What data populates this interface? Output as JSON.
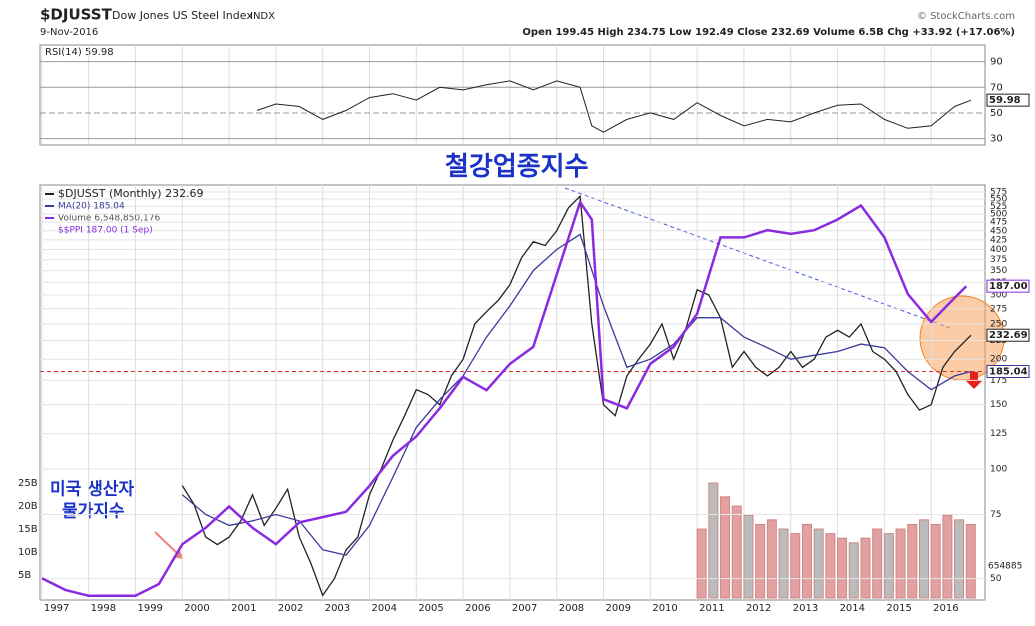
{
  "header": {
    "symbol": "$DJUSST",
    "name": "Dow Jones US Steel Index",
    "market": "INDX",
    "date": "9-Nov-2016",
    "quote": "Open 199.45 High 234.75 Low 192.49 Close 232.69 Volume 6.5B Chg +33.92 (+17.06%)",
    "source": "© StockCharts.com"
  },
  "annotations": {
    "steel": "철강업종지수",
    "ppi_1": "미국 생산자",
    "ppi_2": "물가지수",
    "cut_label": "654885"
  },
  "chart_data": [
    {
      "type": "line",
      "title": "RSI(14) 59.98",
      "color": "#222",
      "ylim": [
        25,
        103
      ],
      "yticks": [
        30,
        50,
        70,
        90
      ],
      "last_label": "59.98",
      "x": [
        2001.6,
        2002,
        2002.5,
        2003,
        2003.5,
        2004,
        2004.5,
        2005,
        2005.5,
        2006,
        2006.5,
        2007,
        2007.5,
        2008,
        2008.5,
        2008.75,
        2009,
        2009.5,
        2010,
        2010.5,
        2011,
        2011.5,
        2012,
        2012.5,
        2013,
        2013.5,
        2014,
        2014.5,
        2015,
        2015.5,
        2016,
        2016.5,
        2016.85
      ],
      "values": [
        52,
        57,
        55,
        45,
        52,
        62,
        65,
        60,
        70,
        68,
        72,
        75,
        68,
        75,
        70,
        40,
        35,
        45,
        50,
        45,
        58,
        48,
        40,
        45,
        43,
        50,
        56,
        57,
        45,
        38,
        40,
        55,
        59.98
      ]
    },
    {
      "type": "line",
      "log": true,
      "xlim": [
        1996.96,
        2017.15
      ],
      "xticks": [
        1997,
        1998,
        1999,
        2000,
        2001,
        2002,
        2003,
        2004,
        2005,
        2006,
        2007,
        2008,
        2009,
        2010,
        2011,
        2012,
        2013,
        2014,
        2015,
        2016
      ],
      "ylim": [
        43.7,
        601
      ],
      "yticks": [
        50,
        75,
        100,
        125,
        150,
        175,
        200,
        225,
        250,
        275,
        300,
        325,
        350,
        375,
        400,
        425,
        450,
        475,
        500,
        525,
        550,
        575
      ],
      "y2lim": [
        121.3,
        215
      ],
      "grid": true,
      "series": [
        {
          "name": "$DJUSST (Monthly) 232.69",
          "color": "#222",
          "x": [
            2000,
            2000.25,
            2000.5,
            2000.75,
            2001,
            2001.25,
            2001.5,
            2001.75,
            2002,
            2002.25,
            2002.5,
            2002.75,
            2003,
            2003.25,
            2003.5,
            2003.75,
            2004,
            2004.25,
            2004.5,
            2004.75,
            2005,
            2005.25,
            2005.5,
            2005.75,
            2006,
            2006.25,
            2006.5,
            2006.75,
            2007,
            2007.25,
            2007.5,
            2007.75,
            2008,
            2008.25,
            2008.5,
            2008.75,
            2009,
            2009.25,
            2009.5,
            2009.75,
            2010,
            2010.25,
            2010.5,
            2010.75,
            2011,
            2011.25,
            2011.5,
            2011.75,
            2012,
            2012.25,
            2012.5,
            2012.75,
            2013,
            2013.25,
            2013.5,
            2013.75,
            2014,
            2014.25,
            2014.5,
            2014.75,
            2015,
            2015.25,
            2015.5,
            2015.75,
            2016,
            2016.25,
            2016.5,
            2016.85
          ],
          "values": [
            90,
            80,
            65,
            62,
            65,
            72,
            85,
            70,
            78,
            88,
            65,
            55,
            45,
            50,
            60,
            65,
            85,
            100,
            120,
            140,
            165,
            160,
            150,
            180,
            200,
            250,
            270,
            290,
            320,
            380,
            420,
            410,
            450,
            520,
            560,
            250,
            150,
            140,
            180,
            200,
            220,
            250,
            200,
            240,
            310,
            300,
            260,
            190,
            210,
            190,
            180,
            190,
            210,
            190,
            200,
            230,
            240,
            230,
            250,
            210,
            200,
            185,
            160,
            145,
            150,
            190,
            210,
            232.69
          ],
          "last_label": "232.69"
        },
        {
          "name": "MA(20) 185.04",
          "color": "#3a3a9a",
          "x": [
            2000,
            2000.5,
            2001,
            2001.5,
            2002,
            2002.5,
            2003,
            2003.5,
            2004,
            2004.5,
            2005,
            2005.5,
            2006,
            2006.5,
            2007,
            2007.5,
            2008,
            2008.5,
            2009,
            2009.5,
            2010,
            2010.5,
            2011,
            2011.5,
            2012,
            2012.5,
            2013,
            2013.5,
            2014,
            2014.5,
            2015,
            2015.5,
            2016,
            2016.5,
            2016.85
          ],
          "values": [
            85,
            75,
            70,
            72,
            75,
            72,
            60,
            58,
            70,
            95,
            130,
            155,
            180,
            230,
            280,
            350,
            400,
            440,
            280,
            190,
            200,
            220,
            260,
            260,
            230,
            215,
            200,
            205,
            210,
            220,
            215,
            185,
            165,
            180,
            185.04
          ],
          "last_label": "185.04"
        },
        {
          "name": "$$PPI 187.00 (1 Sep)",
          "color": "#8a2be2",
          "axis": "y2",
          "x": [
            1997,
            1997.5,
            1998,
            1998.5,
            1999,
            1999.5,
            2000,
            2000.5,
            2001,
            2001.5,
            2002,
            2002.5,
            2003,
            2003.5,
            2004,
            2004.5,
            2005,
            2005.5,
            2006,
            2006.5,
            2007,
            2007.5,
            2008,
            2008.5,
            2008.75,
            2009,
            2009.5,
            2010,
            2010.5,
            2011,
            2011.5,
            2012,
            2012.5,
            2013,
            2013.5,
            2014,
            2014.5,
            2015,
            2015.5,
            2016,
            2016.5,
            2016.75
          ],
          "values": [
            125,
            123,
            122,
            122,
            122,
            124,
            131,
            134,
            138,
            134,
            131,
            135,
            136,
            137,
            142,
            148,
            152,
            158,
            165,
            162,
            168,
            172,
            190,
            210,
            205,
            160,
            158,
            168,
            172,
            180,
            200,
            200,
            202,
            201,
            202,
            205,
            209,
            200,
            185,
            178,
            184,
            187
          ],
          "last_label": "187.00"
        }
      ]
    },
    {
      "type": "bar",
      "name": "Volume 6,548,850,176",
      "color": "#e2a0a0",
      "ylim": [
        0,
        89.8
      ],
      "yticks": [
        {
          "value": 5,
          "label": "5B"
        },
        {
          "value": 10,
          "label": "10B"
        },
        {
          "value": 15,
          "label": "15B"
        },
        {
          "value": 20,
          "label": "20B"
        },
        {
          "value": 25,
          "label": "25B"
        }
      ],
      "x": [
        2011,
        2011.25,
        2011.5,
        2011.75,
        2012,
        2012.25,
        2012.5,
        2012.75,
        2013,
        2013.25,
        2013.5,
        2013.75,
        2014,
        2014.25,
        2014.5,
        2014.75,
        2015,
        2015.25,
        2015.5,
        2015.75,
        2016,
        2016.25,
        2016.5,
        2016.75
      ],
      "values": [
        15,
        25,
        22,
        20,
        18,
        16,
        17,
        15,
        14,
        16,
        15,
        14,
        13,
        12,
        13,
        15,
        14,
        15,
        16,
        17,
        16,
        18,
        17,
        16
      ]
    }
  ]
}
